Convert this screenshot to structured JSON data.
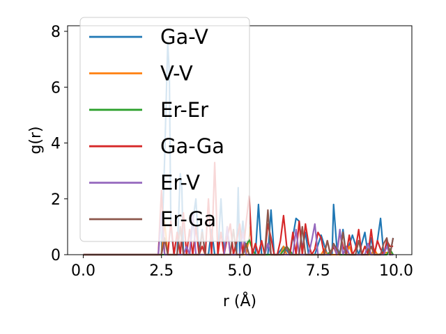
{
  "chart_data": {
    "type": "line",
    "xlabel": "r (Å)",
    "ylabel": "g(r)",
    "xlim": [
      -0.5,
      10.5
    ],
    "ylim": [
      0,
      8.2
    ],
    "xticks": [
      "0.0",
      "2.5",
      "5.0",
      "7.5",
      "10.0"
    ],
    "yticks": [
      "0",
      "2",
      "4",
      "6",
      "8"
    ],
    "grid": false,
    "legend_position": "top-left",
    "series": [
      {
        "name": "Ga-V",
        "color": "#1f77b4",
        "x": [
          0,
          2.5,
          2.6,
          2.7,
          2.75,
          2.8,
          2.9,
          3.0,
          3.1,
          3.15,
          3.2,
          3.3,
          3.4,
          3.5,
          3.6,
          3.7,
          3.8,
          3.9,
          4.0,
          4.1,
          4.2,
          4.3,
          4.4,
          4.5,
          4.6,
          4.7,
          4.8,
          4.9,
          4.95,
          5.0,
          5.1,
          5.2,
          5.3,
          5.4,
          5.5,
          5.6,
          5.7,
          5.8,
          5.9,
          6.0,
          6.1,
          6.2,
          6.4,
          6.6,
          6.8,
          6.9,
          7.0,
          7.1,
          7.2,
          7.4,
          7.6,
          7.8,
          7.95,
          8.0,
          8.1,
          8.2,
          8.3,
          8.4,
          8.6,
          8.8,
          9.0,
          9.1,
          9.2,
          9.3,
          9.4,
          9.5,
          9.6,
          9.7,
          9.8,
          9.9
        ],
        "y": [
          0,
          0,
          3.4,
          7.6,
          6.5,
          1.0,
          0,
          0,
          2.9,
          2.4,
          0,
          0,
          0,
          1.2,
          2.0,
          0,
          0.9,
          0,
          0,
          0.9,
          0,
          0,
          2.0,
          0,
          0,
          0,
          0,
          0,
          2.4,
          0,
          1.2,
          0,
          0,
          0,
          0,
          1.8,
          0,
          0,
          0,
          1.6,
          0,
          0,
          0.3,
          0,
          1.3,
          1.2,
          0.2,
          0.8,
          0,
          0,
          0.7,
          0,
          0,
          1.8,
          0.3,
          0,
          0.9,
          0,
          0.7,
          0,
          0.8,
          0,
          0.6,
          0,
          0.5,
          1.3,
          0,
          0.4,
          0,
          0.6
        ]
      },
      {
        "name": "V-V",
        "color": "#ff7f0e",
        "x": [
          0,
          2.5,
          2.6,
          2.7,
          4.5,
          4.6,
          4.7,
          5.2,
          5.3,
          5.35,
          5.4,
          5.5,
          6.3,
          6.4,
          6.5,
          7.6,
          7.7,
          7.8,
          8.4,
          8.5,
          8.6,
          9.2,
          9.3,
          9.4,
          9.8,
          9.9
        ],
        "y": [
          0,
          0,
          1.2,
          0,
          0,
          1.0,
          0,
          0,
          0.6,
          1.0,
          0,
          0,
          0,
          0.3,
          0,
          0,
          0.2,
          0,
          0,
          0.3,
          0,
          0,
          0.2,
          0,
          0.1,
          0
        ]
      },
      {
        "name": "Er-Er",
        "color": "#2ca02c",
        "x": [
          0,
          5.1,
          5.2,
          5.3,
          5.4,
          5.5,
          6.3,
          6.5,
          6.7,
          7.8,
          8.0,
          8.2,
          8.9,
          9.0,
          9.2,
          9.7,
          9.8,
          9.9
        ],
        "y": [
          0,
          0,
          0.3,
          0.55,
          0.2,
          0,
          0,
          0.3,
          0,
          0,
          0.25,
          0,
          0,
          0.3,
          0,
          0,
          0.2,
          0
        ]
      },
      {
        "name": "Ga-Ga",
        "color": "#d62728",
        "x": [
          0,
          2.4,
          2.5,
          2.6,
          2.7,
          2.8,
          2.9,
          3.0,
          3.1,
          3.2,
          3.3,
          3.4,
          3.5,
          3.6,
          3.7,
          3.8,
          3.9,
          4.0,
          4.1,
          4.2,
          4.3,
          4.4,
          4.5,
          4.6,
          4.7,
          4.8,
          4.9,
          5.0,
          5.1,
          5.2,
          5.3,
          5.4,
          5.5,
          5.6,
          5.7,
          5.8,
          5.9,
          6.0,
          6.1,
          6.2,
          6.3,
          6.4,
          6.5,
          6.6,
          6.7,
          6.8,
          6.9,
          7.0,
          7.1,
          7.2,
          7.3,
          7.4,
          7.5,
          7.6,
          7.7,
          7.8,
          7.9,
          8.0,
          8.1,
          8.2,
          8.3,
          8.4,
          8.5,
          8.6,
          8.7,
          8.8,
          8.9,
          9.0,
          9.1,
          9.2,
          9.3,
          9.4,
          9.5,
          9.6,
          9.7,
          9.8,
          9.9
        ],
        "y": [
          0,
          0,
          2.3,
          0,
          0,
          1.2,
          0,
          0.8,
          0,
          1.5,
          0,
          0.9,
          0,
          1.0,
          0,
          0.3,
          0,
          2.0,
          0,
          3.3,
          0,
          0.8,
          0,
          0.6,
          1.1,
          0,
          0.5,
          1.1,
          0,
          1.1,
          2.1,
          0,
          0.4,
          0,
          0.5,
          0,
          1.1,
          0.6,
          0,
          0,
          0.5,
          1.4,
          0.3,
          0,
          0.8,
          0,
          1.2,
          0,
          1.1,
          0.4,
          0,
          0.2,
          0.8,
          0.6,
          0,
          0.5,
          0,
          0.3,
          0,
          0.8,
          0.3,
          0,
          0.7,
          0,
          0.2,
          0.9,
          0,
          0.3,
          0,
          0.9,
          0,
          0.5,
          0.2,
          0,
          0.5,
          0.3,
          0.3
        ]
      },
      {
        "name": "Er-V",
        "color": "#9467bd",
        "x": [
          0,
          2.4,
          2.5,
          2.6,
          3.2,
          3.3,
          3.4,
          3.5,
          3.6,
          3.7,
          4.5,
          4.6,
          4.7,
          5.0,
          5.1,
          5.2,
          5.8,
          5.9,
          6.0,
          6.7,
          6.8,
          6.9,
          7.2,
          7.3,
          7.4,
          7.5,
          7.9,
          8.0,
          8.1,
          8.2,
          8.3,
          8.4,
          8.5,
          9.0,
          9.1,
          9.2,
          9.6,
          9.7,
          9.8,
          9.9
        ],
        "y": [
          0,
          0,
          1.5,
          0,
          0,
          0.3,
          0,
          1.5,
          0,
          0,
          0,
          1.0,
          0,
          0,
          0.8,
          0,
          0,
          0.4,
          0,
          0,
          0.9,
          0,
          0,
          0.5,
          1.1,
          0,
          0,
          0.4,
          0,
          0.9,
          0,
          0.3,
          0,
          0,
          0.4,
          0,
          0,
          0.3,
          0,
          0
        ]
      },
      {
        "name": "Er-Ga",
        "color": "#8c564b",
        "x": [
          0,
          2.5,
          2.6,
          2.7,
          2.8,
          3.0,
          3.1,
          3.2,
          3.7,
          3.8,
          3.9,
          4.7,
          4.8,
          4.9,
          5.1,
          5.2,
          5.3,
          5.8,
          5.9,
          6.0,
          6.4,
          6.5,
          6.6,
          6.9,
          7.0,
          7.1,
          7.7,
          7.8,
          7.9,
          8.0,
          8.2,
          8.3,
          8.4,
          8.7,
          8.8,
          8.9,
          9.1,
          9.2,
          9.3,
          9.5,
          9.6,
          9.7,
          9.8,
          9.9
        ],
        "y": [
          0,
          0,
          0.6,
          0,
          0,
          0,
          1.0,
          0,
          0,
          0.8,
          0,
          0,
          0.9,
          0,
          0,
          0.4,
          0,
          0,
          1.6,
          0,
          0,
          0.3,
          0,
          0,
          1.0,
          0,
          0,
          0.5,
          0,
          0.4,
          0,
          0.8,
          0,
          0,
          0.5,
          0,
          0,
          0.3,
          0,
          0,
          0.4,
          0.6,
          0,
          0.6
        ]
      }
    ]
  }
}
